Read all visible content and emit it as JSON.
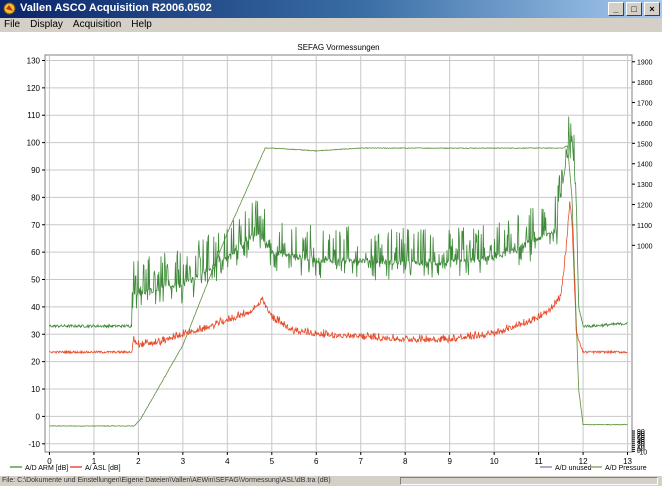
{
  "window": {
    "title": "Vallen ASCO Acquisition R2006.0502",
    "minimize_label": "_",
    "maximize_label": "□",
    "close_label": "×"
  },
  "menu": {
    "items": [
      "File",
      "Display",
      "Acquisition",
      "Help"
    ]
  },
  "status": {
    "path_text": "File: C:\\Dokumente und Einstellungen\\Eigene Dateien\\Vallen\\AEWin\\SEFAG\\Vormessung\\ASL\\dB.tra (dB)"
  },
  "chart_data": {
    "type": "line",
    "title": "SEFAG Vormessungen",
    "xlabel": "",
    "ylabel": "",
    "xlim": [
      -0.1,
      13.1
    ],
    "ylim": [
      -13,
      132
    ],
    "y2lim": [
      -13,
      1933
    ],
    "x_ticks": [
      0,
      1,
      2,
      3,
      4,
      5,
      6,
      7,
      8,
      9,
      10,
      11,
      12,
      13
    ],
    "y_ticks": [
      -10,
      0,
      10,
      20,
      30,
      40,
      50,
      60,
      70,
      80,
      90,
      100,
      110,
      120,
      130
    ],
    "y2_ticks": [
      -10,
      0,
      10,
      20,
      30,
      40,
      50,
      60,
      70,
      80,
      90,
      1000,
      1100,
      1200,
      1300,
      1400,
      1500,
      1600,
      1700,
      1800,
      1900
    ],
    "grid": true,
    "legend": [
      {
        "label": "A/D  ARM [dB]",
        "color": "#5a9a50"
      },
      {
        "label": "A/  ASL [dB]",
        "color": "#e8503a"
      },
      {
        "label": "A/D unused",
        "color": "#9090b0"
      },
      {
        "label": "A/D Pressure",
        "color": "#8aa864"
      }
    ],
    "series": [
      {
        "name": "A/D Pressure",
        "color": "#5d8f3c",
        "noise": 0.25,
        "x": [
          0,
          1.9,
          2.05,
          3,
          4,
          4.85,
          5,
          6,
          7,
          8,
          9,
          10,
          11,
          11.55,
          11.65,
          11.75,
          11.9,
          12.0,
          12.3,
          13
        ],
        "y": [
          -3.5,
          -3.5,
          -1,
          26,
          67,
          98,
          98,
          97,
          98,
          98,
          98,
          98,
          98,
          98,
          99,
          80,
          10,
          -3,
          -3,
          -3
        ]
      },
      {
        "name": "A/D ARM",
        "color": "#3f8a3a",
        "noise": 1.0,
        "spikes": 20,
        "x": [
          0,
          1.85,
          1.85,
          2,
          3,
          4,
          4.5,
          4.7,
          5,
          6,
          7,
          8,
          9,
          10,
          10.5,
          11,
          11.4,
          11.6,
          11.75,
          11.85,
          11.9,
          12.0,
          12.2,
          13
        ],
        "y": [
          33,
          33,
          46,
          45,
          48,
          58,
          65,
          67,
          60,
          57,
          57,
          56,
          56,
          58,
          61,
          65,
          68,
          92,
          102,
          78,
          40,
          33,
          33,
          34
        ]
      },
      {
        "name": "A/  ASL",
        "color": "#e84b2a",
        "noise": 0.8,
        "spikes": 3,
        "x": [
          0,
          1.85,
          1.9,
          2,
          2.5,
          3,
          3.5,
          4,
          4.5,
          4.8,
          5,
          5.5,
          6,
          7,
          8,
          9,
          10,
          10.5,
          11,
          11.3,
          11.5,
          11.6,
          11.7,
          11.75,
          11.85,
          12.0,
          12.3,
          13
        ],
        "y": [
          23.5,
          23.5,
          28,
          26,
          27,
          30,
          32,
          35,
          38,
          42,
          36,
          31,
          30,
          29,
          28,
          28,
          30,
          33,
          36,
          39,
          44,
          58,
          78,
          72,
          30,
          23.5,
          23.5,
          23.5
        ]
      }
    ]
  }
}
